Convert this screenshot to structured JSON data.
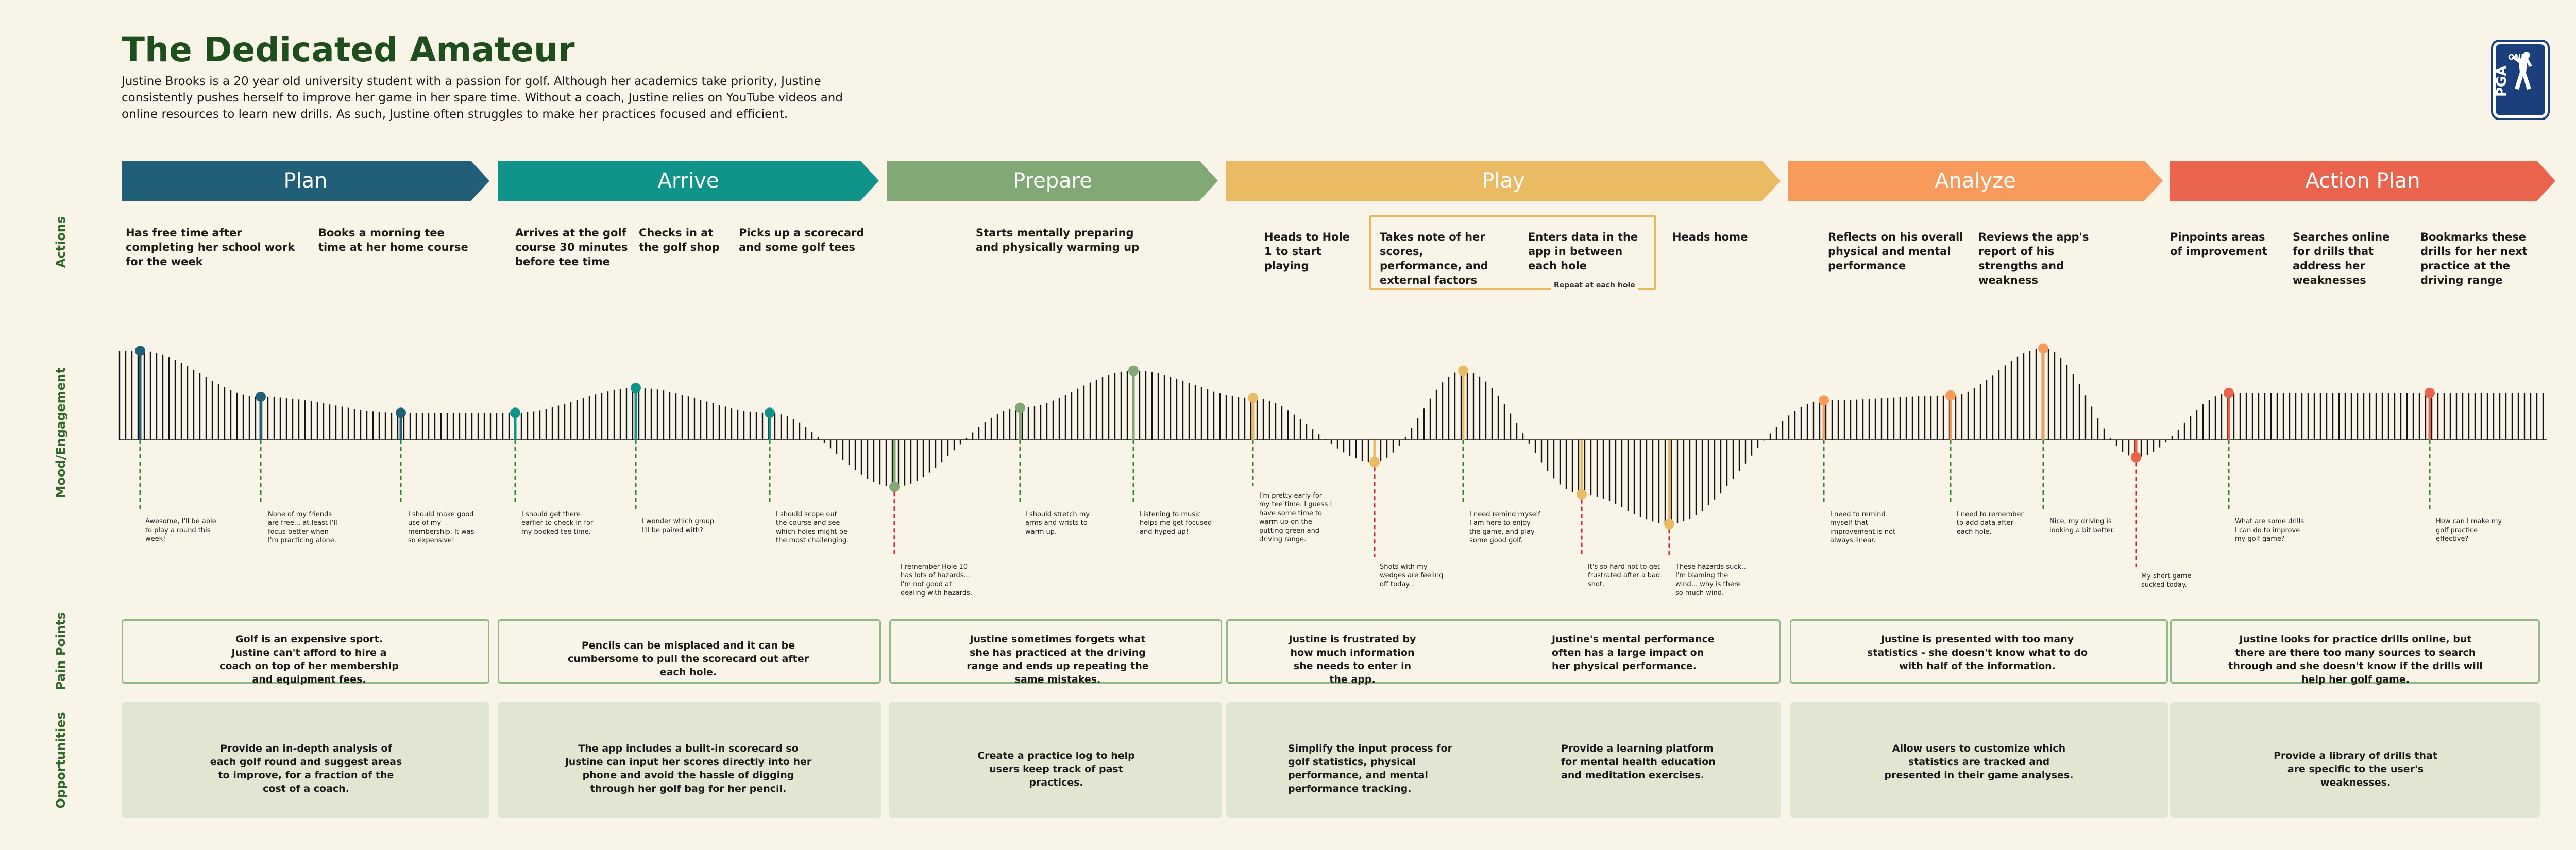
{
  "title": "The Dedicated Amateur",
  "intro": "Justine Brooks is a 20 year old university student with a passion for golf. Although her academics take priority, Justine consistently pushes herself to improve her game in her spare time. Without a coach, Justine relies on YouTube videos and online resources to learn new drills. As such, Justine often struggles to make her practices focused and efficient.",
  "logo": {
    "top_text": "ONE",
    "letters": "PGA",
    "color": "#1b3f7d"
  },
  "row_labels": {
    "actions": "Actions",
    "mood": "Mood/Engagement",
    "pain": "Pain Points",
    "opportunities": "Opportunities"
  },
  "phases": [
    {
      "label": "Plan",
      "color": "#215f79"
    },
    {
      "label": "Arrive",
      "color": "#10948a"
    },
    {
      "label": "Prepare",
      "color": "#82a975"
    },
    {
      "label": "Play",
      "color": "#ebbb64"
    },
    {
      "label": "Analyze",
      "color": "#f79a5b"
    },
    {
      "label": "Action Plan",
      "color": "#e9634d"
    }
  ],
  "actions": [
    "Has free time after completing her school work for the week",
    "Books a morning tee time at her home course",
    "Arrives at the golf course 30 minutes before tee time",
    "Checks in at the golf shop",
    "Picks up a scorecard and some golf tees",
    "Starts mentally preparing and physically warming up",
    "Heads to Hole 1 to start playing",
    "Takes note of her scores, performance, and external factors",
    "Enters data in the app in between each hole",
    "Heads home",
    "Reflects on his overall physical and mental performance",
    "Reviews the app's report of his strengths and weakness",
    "Pinpoints areas of improvement",
    "Searches online for drills that address her weaknesses",
    "Bookmarks these drills for her next practice at the driving range"
  ],
  "repeat_label": "Repeat at each hole",
  "moments": [
    {
      "quote": "Awesome, I'll be able to play a round this week!",
      "color": "#215f79",
      "sentiment": 0.72
    },
    {
      "quote": "None of my friends are free... at least I'll focus better when I'm practicing alone.",
      "color": "#215f79",
      "sentiment": 0.35
    },
    {
      "quote": "I should make good use of my membership. It was so expensive!",
      "color": "#215f79",
      "sentiment": 0.22
    },
    {
      "quote": "I should get there earlier to check in for my booked tee time.",
      "color": "#10948a",
      "sentiment": 0.22
    },
    {
      "quote": "I wonder which group I'll be paired with?",
      "color": "#10948a",
      "sentiment": 0.42
    },
    {
      "quote": "I should scope out the course and see which holes might be the most challenging.",
      "color": "#10948a",
      "sentiment": 0.22
    },
    {
      "quote": "I remember Hole 10 has lots of hazards... I'm not good at dealing with hazards.",
      "color": "#82a975",
      "sentiment": -0.38
    },
    {
      "quote": "I should stretch my arms and wrists to warm up.",
      "color": "#82a975",
      "sentiment": 0.26
    },
    {
      "quote": "Listening to music helps me get focused and hyped up!",
      "color": "#82a975",
      "sentiment": 0.56
    },
    {
      "quote": "I'm pretty early for my tee time. I guess I have some time to warm up on the putting green and driving range.",
      "color": "#ebbb64",
      "sentiment": 0.34
    },
    {
      "quote": "Shots with my wedges are feeling off today...",
      "color": "#ebbb64",
      "sentiment": -0.18
    },
    {
      "quote": "I need remind myself I am here to enjoy the game, and play some good golf.",
      "color": "#ebbb64",
      "sentiment": 0.56
    },
    {
      "quote": "It's so hard not to get frustrated after a bad shot.",
      "color": "#ebbb64",
      "sentiment": -0.44
    },
    {
      "quote": "These hazards suck... I'm blaming the wind... why is there so much wind.",
      "color": "#ebbb64",
      "sentiment": -0.68
    },
    {
      "quote": "I need to remind myself that improvement is not always linear.",
      "color": "#f79a5b",
      "sentiment": 0.32
    },
    {
      "quote": "I need to remember to add data after each hole.",
      "color": "#f79a5b",
      "sentiment": 0.36
    },
    {
      "quote": "Nice, my driving is looking a bit better.",
      "color": "#f79a5b",
      "sentiment": 0.74
    },
    {
      "quote": "My short game sucked today.",
      "color": "#e9634d",
      "sentiment": -0.14
    },
    {
      "quote": "What are some drills I can do to improve my golf game?",
      "color": "#e9634d",
      "sentiment": 0.38
    },
    {
      "quote": "How can I make my golf practice effective?",
      "color": "#e9634d",
      "sentiment": 0.38
    }
  ],
  "pain_points": [
    "Golf is an expensive sport. Justine can't afford to hire a coach on top of her membership and equipment fees.",
    "Pencils can be misplaced and it can be cumbersome to pull the scorecard out after each hole.",
    "Justine sometimes forgets what she has practiced at the driving range and ends up repeating the same mistakes.",
    "Justine is frustrated by how much information she needs to enter in the app.",
    "Justine's mental performance often has a large impact on her physical performance.",
    "Justine is presented with too many statistics - she doesn't know what to do with half of the information.",
    "Justine looks for practice drills online, but there are there too many sources to search through and she doesn't know if the drills will help her golf game."
  ],
  "opportunities": [
    "Provide an in-depth analysis of each golf round and suggest areas to improve, for a fraction of the cost of a coach.",
    "The app includes a built-in scorecard so Justine can input her scores directly into her phone and avoid the hassle of digging through her golf bag for her pencil.",
    "Create a practice log to help users keep track of past practices.",
    "Simplify the input process for golf statistics, physical performance, and mental performance tracking.",
    "Provide a learning platform for mental health education and meditation exercises.",
    "Allow users to customize which statistics are tracked and presented in their game analyses.",
    "Provide a library of drills that are specific to the user's weaknesses."
  ]
}
